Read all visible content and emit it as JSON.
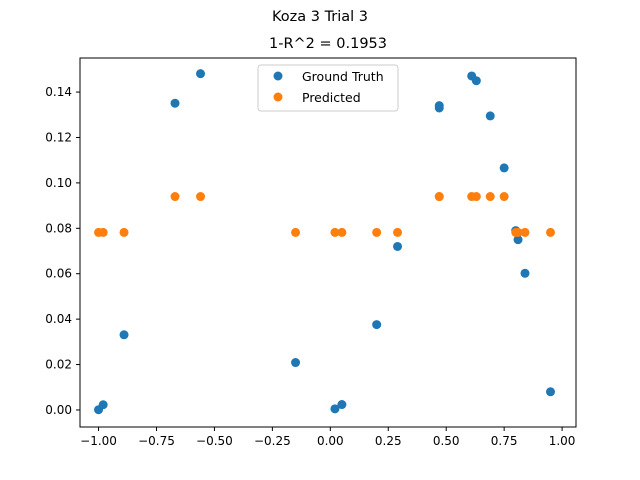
{
  "figure": {
    "suptitle": "Koza 3 Trial 3",
    "title": "1-R^2 = 0.1953"
  },
  "chart_data": {
    "type": "scatter",
    "title": "1-R^2 = 0.1953",
    "suptitle": "Koza 3 Trial 3",
    "xlabel": "",
    "ylabel": "",
    "xlim": [
      -1.08,
      1.06
    ],
    "ylim": [
      -0.0075,
      0.155
    ],
    "xticks": [
      -1.0,
      -0.75,
      -0.5,
      -0.25,
      0.0,
      0.25,
      0.5,
      0.75,
      1.0
    ],
    "xtick_labels": [
      "−1.00",
      "−0.75",
      "−0.50",
      "−0.25",
      "0.00",
      "0.25",
      "0.50",
      "0.75",
      "1.00"
    ],
    "yticks": [
      0.0,
      0.02,
      0.04,
      0.06,
      0.08,
      0.1,
      0.12,
      0.14
    ],
    "ytick_labels": [
      "0.00",
      "0.02",
      "0.04",
      "0.06",
      "0.08",
      "0.10",
      "0.12",
      "0.14"
    ],
    "grid": false,
    "legend_position": "upper center",
    "series": [
      {
        "name": "Ground Truth",
        "color": "#1f77b4",
        "points": [
          [
            -1.0,
            0.0001
          ],
          [
            -0.98,
            0.0023
          ],
          [
            -0.89,
            0.0331
          ],
          [
            -0.67,
            0.1351
          ],
          [
            -0.56,
            0.1481
          ],
          [
            -0.15,
            0.0209
          ],
          [
            0.02,
            0.0005
          ],
          [
            0.05,
            0.0024
          ],
          [
            0.2,
            0.0376
          ],
          [
            0.29,
            0.072
          ],
          [
            0.47,
            0.133
          ],
          [
            0.47,
            0.134
          ],
          [
            0.61,
            0.1471
          ],
          [
            0.63,
            0.145
          ],
          [
            0.69,
            0.1295
          ],
          [
            0.75,
            0.1066
          ],
          [
            0.8,
            0.079
          ],
          [
            0.81,
            0.075
          ],
          [
            0.84,
            0.0602
          ],
          [
            0.95,
            0.008
          ]
        ]
      },
      {
        "name": "Predicted",
        "color": "#ff7f0e",
        "points": [
          [
            -1.0,
            0.0782
          ],
          [
            -0.98,
            0.0782
          ],
          [
            -0.89,
            0.0782
          ],
          [
            -0.67,
            0.094
          ],
          [
            -0.56,
            0.094
          ],
          [
            -0.15,
            0.0782
          ],
          [
            0.02,
            0.0782
          ],
          [
            0.05,
            0.0782
          ],
          [
            0.2,
            0.0782
          ],
          [
            0.29,
            0.0782
          ],
          [
            0.47,
            0.094
          ],
          [
            0.47,
            0.094
          ],
          [
            0.61,
            0.094
          ],
          [
            0.63,
            0.094
          ],
          [
            0.69,
            0.094
          ],
          [
            0.75,
            0.094
          ],
          [
            0.8,
            0.0782
          ],
          [
            0.81,
            0.0782
          ],
          [
            0.84,
            0.0782
          ],
          [
            0.95,
            0.0782
          ]
        ]
      }
    ]
  }
}
